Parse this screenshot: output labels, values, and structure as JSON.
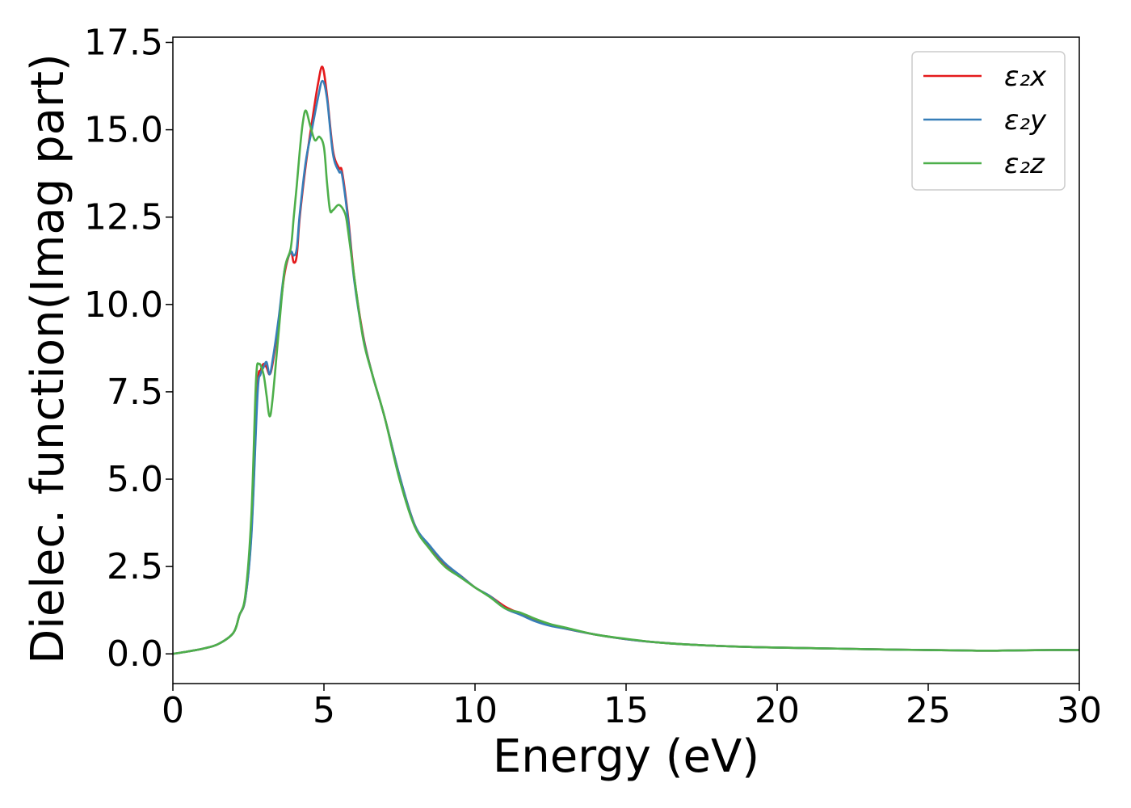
{
  "chart_data": {
    "type": "line",
    "title": "",
    "xlabel": "Energy (eV)",
    "ylabel": "Dielec. function(Imag part)",
    "xlim": [
      0,
      30
    ],
    "ylim": [
      -0.85,
      17.65
    ],
    "xticks": [
      0,
      5,
      10,
      15,
      20,
      25,
      30
    ],
    "xtick_labels": [
      "0",
      "5",
      "10",
      "15",
      "20",
      "25",
      "30"
    ],
    "yticks": [
      0,
      2.5,
      5,
      7.5,
      10,
      12.5,
      15,
      17.5
    ],
    "ytick_labels": [
      "0.0",
      "2.5",
      "5.0",
      "7.5",
      "10.0",
      "12.5",
      "15.0",
      "17.5"
    ],
    "grid": false,
    "legend_position": "top-right",
    "series": [
      {
        "name": "ε₂x",
        "color": "#e41a1c",
        "x": [
          0,
          0.5,
          1.0,
          1.5,
          2.0,
          2.2,
          2.4,
          2.6,
          2.8,
          2.9,
          3.0,
          3.1,
          3.2,
          3.3,
          3.5,
          3.7,
          3.9,
          4.0,
          4.1,
          4.2,
          4.4,
          4.6,
          4.8,
          4.95,
          5.1,
          5.3,
          5.5,
          5.6,
          5.8,
          6.0,
          6.3,
          6.6,
          7.0,
          7.5,
          8.0,
          8.5,
          9.0,
          9.5,
          10.0,
          10.5,
          11.0,
          11.5,
          12.0,
          12.5,
          13.0,
          14.0,
          15.0,
          16.0,
          17.0,
          18.0,
          19.0,
          20.0,
          22.0,
          24.0,
          26.0,
          27.0,
          28.0,
          29.0,
          30.0
        ],
        "y": [
          0.0,
          0.07,
          0.15,
          0.28,
          0.6,
          1.1,
          1.6,
          3.5,
          7.6,
          8.1,
          8.3,
          8.2,
          8.0,
          8.3,
          9.5,
          10.9,
          11.5,
          11.2,
          11.4,
          12.5,
          14.0,
          15.2,
          16.3,
          16.8,
          16.0,
          14.4,
          13.9,
          13.8,
          12.5,
          10.8,
          9.1,
          8.0,
          6.8,
          5.1,
          3.7,
          3.05,
          2.55,
          2.25,
          1.9,
          1.65,
          1.35,
          1.15,
          0.95,
          0.82,
          0.72,
          0.55,
          0.42,
          0.33,
          0.27,
          0.23,
          0.2,
          0.18,
          0.15,
          0.12,
          0.1,
          0.09,
          0.1,
          0.11,
          0.11
        ]
      },
      {
        "name": "ε₂y",
        "color": "#377eb8",
        "x": [
          0,
          0.5,
          1.0,
          1.5,
          2.0,
          2.2,
          2.4,
          2.6,
          2.8,
          2.9,
          3.0,
          3.1,
          3.2,
          3.3,
          3.5,
          3.7,
          3.9,
          4.0,
          4.1,
          4.2,
          4.4,
          4.6,
          4.8,
          4.95,
          5.1,
          5.3,
          5.5,
          5.6,
          5.8,
          6.0,
          6.3,
          6.6,
          7.0,
          7.5,
          8.0,
          8.5,
          9.0,
          9.5,
          10.0,
          10.5,
          11.0,
          11.5,
          12.0,
          12.5,
          13.0,
          14.0,
          15.0,
          16.0,
          17.0,
          18.0,
          19.0,
          20.0,
          22.0,
          24.0,
          26.0,
          27.0,
          28.0,
          29.0,
          30.0
        ],
        "y": [
          0.0,
          0.07,
          0.15,
          0.28,
          0.6,
          1.1,
          1.6,
          3.4,
          7.4,
          8.0,
          8.2,
          8.35,
          8.0,
          8.4,
          9.6,
          11.0,
          11.5,
          11.4,
          11.6,
          12.6,
          14.1,
          15.0,
          15.9,
          16.4,
          15.9,
          14.3,
          13.8,
          13.7,
          12.4,
          10.7,
          9.05,
          8.0,
          6.8,
          5.1,
          3.7,
          3.1,
          2.6,
          2.25,
          1.9,
          1.65,
          1.3,
          1.12,
          0.93,
          0.8,
          0.72,
          0.55,
          0.42,
          0.33,
          0.27,
          0.23,
          0.2,
          0.18,
          0.15,
          0.12,
          0.1,
          0.09,
          0.1,
          0.11,
          0.11
        ]
      },
      {
        "name": "ε₂z",
        "color": "#4daf4a",
        "x": [
          0,
          0.5,
          1.0,
          1.5,
          2.0,
          2.2,
          2.4,
          2.6,
          2.75,
          2.85,
          3.0,
          3.1,
          3.2,
          3.3,
          3.5,
          3.7,
          3.9,
          4.0,
          4.1,
          4.2,
          4.3,
          4.4,
          4.55,
          4.7,
          4.85,
          5.0,
          5.1,
          5.2,
          5.3,
          5.5,
          5.7,
          5.8,
          6.0,
          6.3,
          6.6,
          7.0,
          7.5,
          8.0,
          8.5,
          9.0,
          9.5,
          10.0,
          10.5,
          11.0,
          11.5,
          12.0,
          12.5,
          13.0,
          14.0,
          15.0,
          16.0,
          17.0,
          18.0,
          19.0,
          20.0,
          22.0,
          24.0,
          26.0,
          27.0,
          28.0,
          29.0,
          30.0
        ],
        "y": [
          0.0,
          0.07,
          0.15,
          0.28,
          0.6,
          1.1,
          1.7,
          4.0,
          7.8,
          8.3,
          8.0,
          7.4,
          6.8,
          7.3,
          9.2,
          11.0,
          11.6,
          12.5,
          13.4,
          14.4,
          15.2,
          15.55,
          15.1,
          14.7,
          14.8,
          14.5,
          13.5,
          12.7,
          12.7,
          12.85,
          12.6,
          12.1,
          10.8,
          9.0,
          8.0,
          6.8,
          5.0,
          3.65,
          3.0,
          2.5,
          2.2,
          1.9,
          1.62,
          1.3,
          1.18,
          1.0,
          0.85,
          0.75,
          0.55,
          0.43,
          0.33,
          0.27,
          0.23,
          0.2,
          0.18,
          0.15,
          0.12,
          0.1,
          0.09,
          0.1,
          0.11,
          0.11
        ]
      }
    ]
  }
}
